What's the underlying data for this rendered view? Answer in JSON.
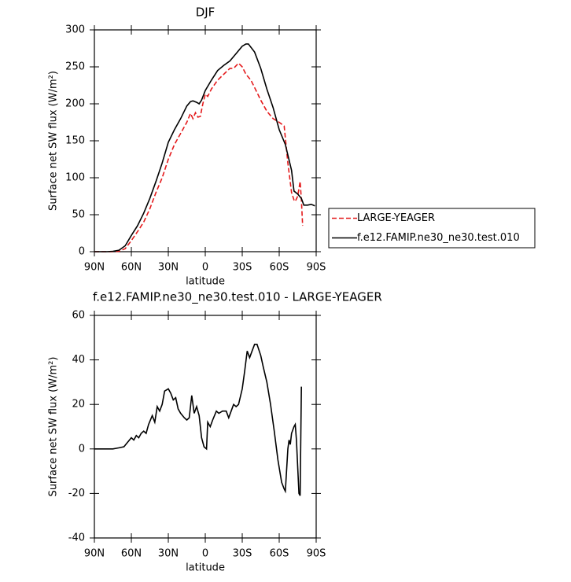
{
  "chart_data": [
    {
      "type": "line",
      "title": "DJF",
      "xlabel": "latitude",
      "ylabel": "Surface net SW flux (W/m²)",
      "xlim": [
        90,
        -90
      ],
      "xticks": [
        {
          "value": 90,
          "label": "90N"
        },
        {
          "value": 60,
          "label": "60N"
        },
        {
          "value": 30,
          "label": "30N"
        },
        0,
        {
          "value": -30,
          "label": "30S"
        },
        {
          "value": -60,
          "label": "60S"
        },
        {
          "value": -90,
          "label": "90S"
        }
      ],
      "ylim": [
        0,
        300
      ],
      "yticks": [
        0,
        50,
        100,
        150,
        200,
        250,
        300
      ],
      "legend": "right",
      "series": [
        {
          "name": "LARGE-YEAGER",
          "color": "#e41a1c",
          "style": "dashed",
          "x": [
            90,
            80,
            75,
            70,
            65,
            60,
            55,
            50,
            45,
            40,
            35,
            30,
            25,
            20,
            15,
            12,
            10,
            8,
            6,
            4,
            2,
            0,
            -2,
            -5,
            -10,
            -15,
            -20,
            -23,
            -27,
            -30,
            -33,
            -37,
            -40,
            -45,
            -50,
            -55,
            -60,
            -64,
            -67,
            -70,
            -72,
            -73,
            -75,
            -77,
            -78,
            -79
          ],
          "values": [
            0,
            0,
            0,
            0.5,
            4,
            15,
            27,
            40,
            58,
            80,
            100,
            125,
            145,
            160,
            175,
            187,
            180,
            188,
            182,
            183,
            200,
            213,
            210,
            220,
            232,
            240,
            248,
            248,
            255,
            250,
            240,
            232,
            222,
            205,
            190,
            180,
            175,
            170,
            120,
            80,
            70,
            68,
            75,
            95,
            70,
            35
          ]
        },
        {
          "name": "f.e12.FAMIP.ne30_ne30.test.010",
          "color": "#000000",
          "style": "solid",
          "x": [
            90,
            80,
            75,
            70,
            65,
            60,
            55,
            50,
            45,
            40,
            35,
            30,
            25,
            20,
            15,
            12,
            10,
            7,
            5,
            3,
            0,
            -5,
            -10,
            -15,
            -20,
            -25,
            -30,
            -33,
            -35,
            -40,
            -45,
            -50,
            -55,
            -60,
            -65,
            -70,
            -72,
            -75,
            -78,
            -80,
            -83,
            -86,
            -89
          ],
          "values": [
            0,
            0,
            0.5,
            2,
            8,
            22,
            35,
            52,
            72,
            95,
            120,
            148,
            165,
            180,
            197,
            203,
            204,
            202,
            200,
            205,
            218,
            232,
            245,
            252,
            258,
            268,
            278,
            281,
            281,
            270,
            248,
            220,
            195,
            165,
            145,
            110,
            82,
            78,
            72,
            63,
            63,
            64,
            62
          ]
        }
      ]
    },
    {
      "type": "line",
      "title": "f.e12.FAMIP.ne30_ne30.test.010 - LARGE-YEAGER",
      "xlabel": "latitude",
      "ylabel": "Surface net SW flux (W/m²)",
      "xlim": [
        90,
        -90
      ],
      "xticks": [
        {
          "value": 90,
          "label": "90N"
        },
        {
          "value": 60,
          "label": "60N"
        },
        {
          "value": 30,
          "label": "30N"
        },
        0,
        {
          "value": -30,
          "label": "30S"
        },
        {
          "value": -60,
          "label": "60S"
        },
        {
          "value": -90,
          "label": "90S"
        }
      ],
      "ylim": [
        -40,
        60
      ],
      "yticks": [
        -40,
        -20,
        0,
        20,
        40,
        60
      ],
      "series": [
        {
          "color": "#000000",
          "style": "solid",
          "x": [
            90,
            75,
            70,
            66,
            63,
            60,
            58,
            56,
            54,
            52,
            50,
            48,
            46,
            43,
            41,
            39,
            37,
            35,
            33,
            30,
            28,
            26,
            24,
            22,
            20,
            17,
            15,
            13,
            11,
            9,
            7,
            5,
            3,
            1,
            -1,
            -2,
            -4,
            -6,
            -9,
            -11,
            -14,
            -17,
            -19,
            -21,
            -23,
            -25,
            -27,
            -30,
            -32,
            -34,
            -36,
            -38,
            -40,
            -42,
            -45,
            -47,
            -50,
            -53,
            -56,
            -59,
            -62,
            -64,
            -65,
            -67,
            -68,
            -69,
            -70,
            -72,
            -73,
            -74,
            -76,
            -77,
            -78
          ],
          "values": [
            0,
            0,
            0.5,
            1,
            3,
            5,
            4,
            6,
            5,
            7,
            8,
            7,
            11,
            15,
            12,
            19,
            17,
            20,
            26,
            27,
            25,
            22,
            23,
            18,
            16,
            14,
            13,
            14,
            24,
            16,
            19,
            15,
            5,
            1,
            0,
            12,
            10,
            13,
            17,
            16,
            17,
            17,
            14,
            17,
            20,
            19,
            20,
            27,
            35,
            44,
            41,
            44,
            47,
            47,
            42,
            37,
            30,
            20,
            8,
            -5,
            -15,
            -18,
            -19,
            0,
            4,
            2,
            7,
            10,
            11,
            4,
            -20,
            -21,
            28
          ]
        }
      ]
    }
  ]
}
